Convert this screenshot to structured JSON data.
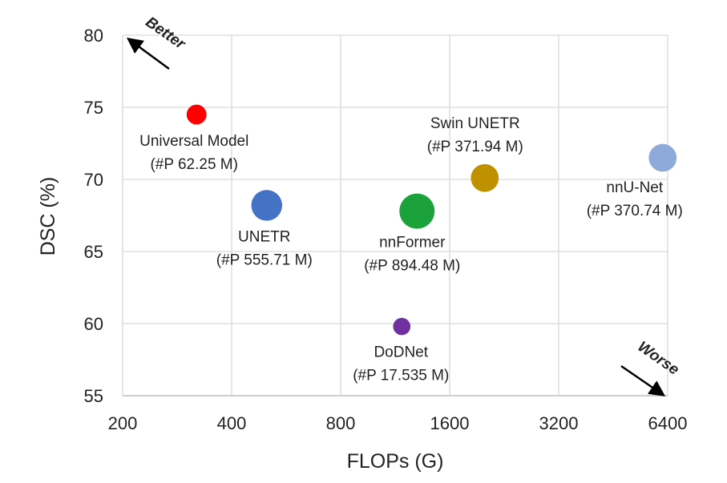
{
  "chart_data": {
    "type": "scatter",
    "xlabel": "FLOPs (G)",
    "ylabel": "DSC (%)",
    "x_scale": "log2",
    "xlim": [
      200,
      6400
    ],
    "ylim": [
      55,
      80
    ],
    "x_ticks": [
      200,
      400,
      800,
      1600,
      3200,
      6400
    ],
    "x_tick_labels": [
      "200",
      "400",
      "800",
      "1600",
      "3200",
      "6400"
    ],
    "y_ticks": [
      55,
      60,
      65,
      70,
      75,
      80
    ],
    "y_tick_labels": [
      "55",
      "60",
      "65",
      "70",
      "75",
      "80"
    ],
    "grid": true,
    "points": [
      {
        "name": "Universal Model",
        "params": "(#P 62.25 M)",
        "x": 320,
        "y": 74.5,
        "color": "#ff0000",
        "size": 62.25
      },
      {
        "name": "UNETR",
        "params": "(#P 555.71 M)",
        "x": 500,
        "y": 68.2,
        "color": "#4472c4",
        "size": 555.71
      },
      {
        "name": "nnFormer",
        "params": "(#P 894.48 M)",
        "x": 1300,
        "y": 67.8,
        "color": "#1ca23a",
        "size": 894.48
      },
      {
        "name": "Swin UNETR",
        "params": "(#P 371.94 M)",
        "x": 2000,
        "y": 70.1,
        "color": "#bf9000",
        "size": 371.94
      },
      {
        "name": "nnU-Net",
        "params": "(#P 370.74 M)",
        "x": 6200,
        "y": 71.5,
        "color": "#8eaadb",
        "size": 370.74
      },
      {
        "name": "DoDNet",
        "params": "(#P 17.535 M)",
        "x": 1180,
        "y": 59.8,
        "color": "#7030a0",
        "size": 17.535
      }
    ],
    "annotations": [
      {
        "text": "Better",
        "position": "top-left"
      },
      {
        "text": "Worse",
        "position": "bottom-right"
      }
    ]
  }
}
